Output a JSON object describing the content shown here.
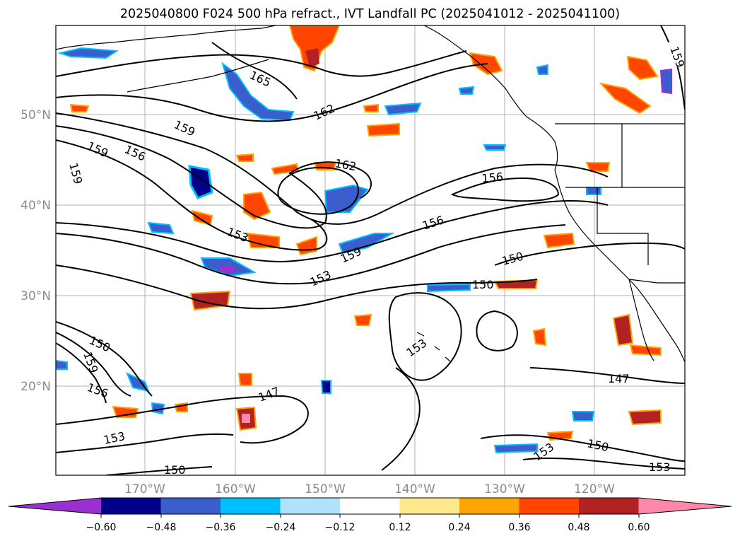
{
  "title": "2025040800 F024 500 hPa refract., IVT Landfall PC (2025041012 - 2025041100)",
  "latitudes": [
    "50°N",
    "40°N",
    "30°N",
    "20°N"
  ],
  "longitudes": [
    "170°W",
    "160°W",
    "150°W",
    "140°W",
    "130°W",
    "120°W"
  ],
  "contour_labels": [
    "159",
    "165",
    "162",
    "159",
    "156",
    "159",
    "159",
    "162",
    "156",
    "153",
    "156",
    "159",
    "153",
    "150",
    "150",
    "150",
    "159",
    "156",
    "147",
    "153",
    "153",
    "150",
    "147",
    "153",
    "150",
    "153"
  ],
  "colorbar": {
    "ticks": [
      "−0.60",
      "−0.48",
      "−0.36",
      "−0.24",
      "−0.12",
      "0.12",
      "0.24",
      "0.36",
      "0.48",
      "0.60"
    ],
    "colors": [
      "#9b30d0",
      "#00008b",
      "#3a5fcd",
      "#00bfff",
      "#b0e2ff",
      "#ffffff",
      "#ffe98c",
      "#ffa500",
      "#ff4500",
      "#b22222",
      "#ff88aa"
    ]
  },
  "colors": {
    "contour": "#000000",
    "coast": "#000000",
    "grid": "#b0b0b0",
    "axis_label": "#8a8a8a"
  }
}
